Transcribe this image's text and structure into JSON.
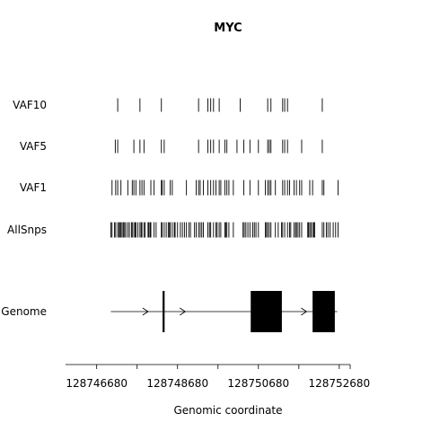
{
  "chart_data": {
    "type": "genomic-track",
    "title": "MYC",
    "xlabel": "Genomic coordinate",
    "xlim": [
      128745910,
      128752950
    ],
    "xticks": [
      128746680,
      128747680,
      128748680,
      128749680,
      128750680,
      128751680,
      128752680
    ],
    "xtick_labels": [
      "128746680",
      "",
      "128748680",
      "",
      "128750680",
      "",
      "128752680"
    ],
    "track_color": "#000000",
    "tracks": [
      {
        "label": "VAF10",
        "positions": [
          127200,
          127750,
          128280,
          129200,
          129430,
          129500,
          129570,
          129710,
          130230,
          130910,
          130990,
          131280,
          131330,
          131400,
          132260
        ]
      },
      {
        "label": "VAF5",
        "positions": [
          127140,
          127200,
          127600,
          127750,
          127850,
          128280,
          128350,
          129200,
          129430,
          129500,
          129570,
          129710,
          129850,
          129900,
          130150,
          130320,
          130470,
          130680,
          130910,
          130950,
          130990,
          131280,
          131330,
          131400,
          131750,
          132260
        ]
      },
      {
        "label": "VAF1",
        "positions": [
          127060,
          127150,
          127200,
          127280,
          127450,
          127560,
          127600,
          127650,
          127750,
          127800,
          127850,
          128020,
          128100,
          128280,
          128300,
          128350,
          128500,
          128550,
          128900,
          129140,
          129200,
          129240,
          129320,
          129430,
          129500,
          129570,
          129630,
          129710,
          129750,
          129850,
          129900,
          129950,
          130060,
          130320,
          130470,
          130680,
          130850,
          130910,
          130950,
          130990,
          131100,
          131280,
          131330,
          131400,
          131450,
          131560,
          131620,
          131700,
          131750,
          131950,
          132020,
          132260,
          132300,
          132650
        ]
      },
      {
        "label": "AllSnps",
        "positions": [
          127030,
          127060,
          127120,
          127150,
          127200,
          127230,
          127260,
          127280,
          127310,
          127340,
          127370,
          127400,
          127450,
          127490,
          127540,
          127560,
          127600,
          127630,
          127650,
          127700,
          127750,
          127780,
          127800,
          127850,
          127880,
          127950,
          127970,
          128000,
          128020,
          128100,
          128150,
          128280,
          128300,
          128350,
          128400,
          128450,
          128480,
          128500,
          128550,
          128600,
          128620,
          128680,
          128750,
          128800,
          128850,
          128900,
          128960,
          129000,
          129100,
          129140,
          129200,
          129240,
          129280,
          129320,
          129430,
          129470,
          129500,
          129570,
          129630,
          129660,
          129710,
          129750,
          129850,
          129870,
          129900,
          129950,
          130060,
          130300,
          130330,
          130370,
          130420,
          130470,
          130540,
          130580,
          130620,
          130680,
          130850,
          130880,
          130910,
          130950,
          130990,
          131100,
          131170,
          131250,
          131280,
          131330,
          131400,
          131450,
          131480,
          131560,
          131600,
          131620,
          131660,
          131700,
          131750,
          131900,
          131920,
          131950,
          131980,
          132020,
          132050,
          132070,
          132260,
          132300,
          132360,
          132400,
          132450,
          132530,
          132590,
          132650
        ]
      }
    ],
    "gene": {
      "label": "Genome",
      "start": 128747030,
      "end": 128752630,
      "strand": "+",
      "arrows": [
        128747950,
        128748870,
        128750870,
        128751870
      ],
      "exons": [
        {
          "start": 128748310,
          "end": 128748360
        },
        {
          "start": 128750490,
          "end": 128751260
        },
        {
          "start": 128752020,
          "end": 128752570
        }
      ]
    }
  }
}
